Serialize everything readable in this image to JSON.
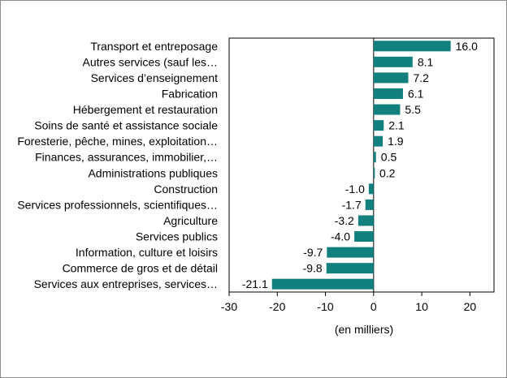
{
  "chart_data": {
    "type": "bar",
    "orientation": "horizontal",
    "categories": [
      "Transport et entreposage",
      "Autres services (sauf les…",
      "Services d’enseignement",
      "Fabrication",
      "Hébergement et restauration",
      "Soins de santé et assistance sociale",
      "Foresterie, pêche, mines, exploitation…",
      "Finances, assurances, immobilier,…",
      "Administrations publiques",
      "Construction",
      "Services professionnels, scientifiques…",
      "Agriculture",
      "Services publics",
      "Information, culture et loisirs",
      "Commerce de gros et de détail",
      "Services aux entreprises, services…"
    ],
    "values": [
      16.0,
      8.1,
      7.2,
      6.1,
      5.5,
      2.1,
      1.9,
      0.5,
      0.2,
      -1.0,
      -1.7,
      -3.2,
      -4.0,
      -9.7,
      -9.8,
      -21.1
    ],
    "value_labels": [
      "16.0",
      "8.1",
      "7.2",
      "6.1",
      "5.5",
      "2.1",
      "1.9",
      "0.5",
      "0.2",
      "-1.0",
      "-1.7",
      "-3.2",
      "-4.0",
      "-9.7",
      "-9.8",
      "-21.1"
    ],
    "xlim": [
      -30,
      25
    ],
    "xticks": [
      -30,
      -20,
      -10,
      0,
      10,
      20
    ],
    "xlabel": "(en milliers)",
    "title": "",
    "grid": false,
    "bar_color": "#138080"
  }
}
